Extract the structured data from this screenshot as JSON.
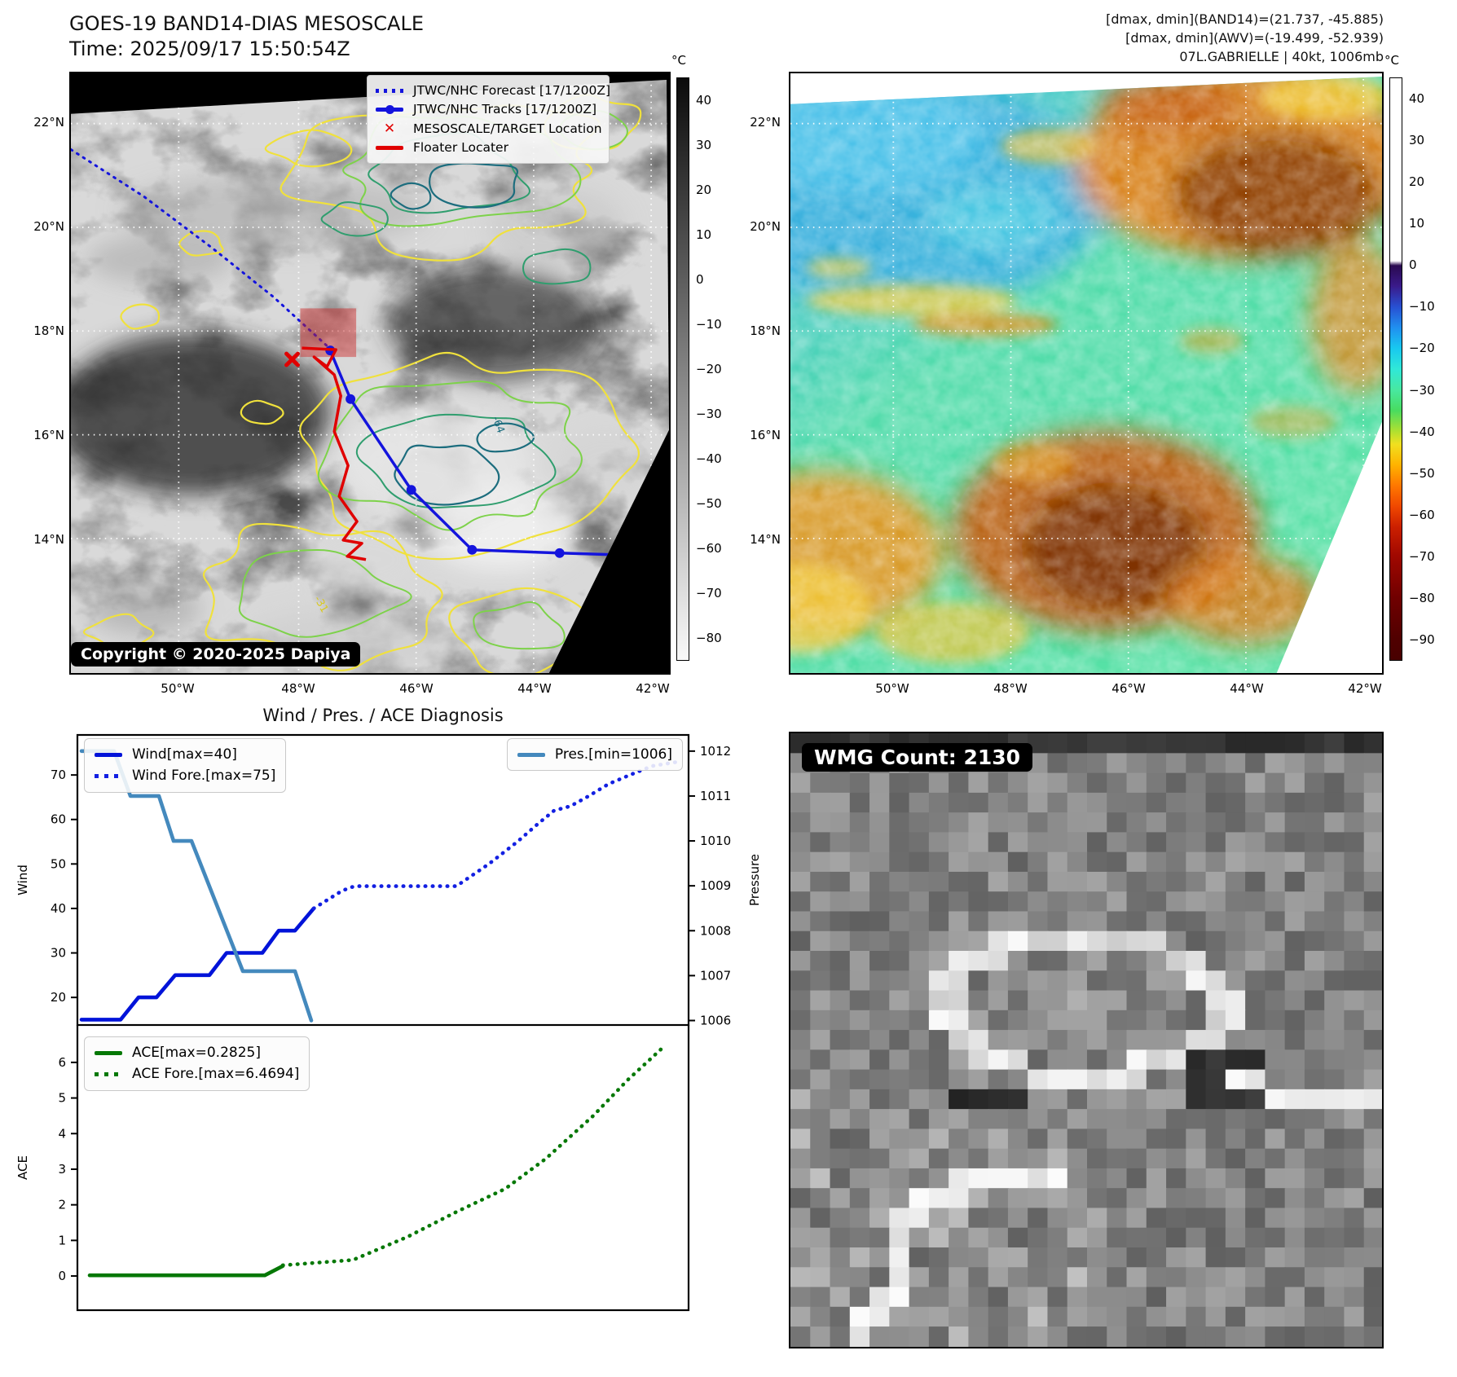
{
  "panel_band14": {
    "title_line1": "GOES-19 BAND14-DIAS MESOSCALE",
    "title_line2": "Time: 2025/09/17 15:50:54Z",
    "copyright": "Copyright © 2020-2025 Dapiya",
    "legend": [
      {
        "label": "JTWC/NHC Forecast [17/1200Z]",
        "style": "dotted",
        "color": "#1414dd"
      },
      {
        "label": "JTWC/NHC Tracks [17/1200Z]",
        "style": "marker",
        "color": "#1414dd"
      },
      {
        "label": "MESOSCALE/TARGET Location",
        "style": "xmark",
        "color": "#e00000"
      },
      {
        "label": "Floater Locater",
        "style": "solid",
        "color": "#e00000"
      }
    ],
    "colorbar": {
      "unit": "°C",
      "ticks": [
        40,
        30,
        20,
        10,
        0,
        -10,
        -20,
        -30,
        -40,
        -50,
        -60,
        -70,
        -80
      ]
    },
    "lat_ticks": [
      "22°N",
      "20°N",
      "18°N",
      "16°N",
      "14°N"
    ],
    "lon_ticks": [
      "50°W",
      "48°W",
      "46°W",
      "44°W",
      "42°W"
    ],
    "contour_labels": [
      "-31",
      "-64"
    ]
  },
  "panel_awv": {
    "header_line1": "[dmax, dmin](BAND14)=(21.737, -45.885)",
    "header_line2": "[dmax, dmin](AWV)=(-19.499, -52.939)",
    "header_line3": "07L.GABRIELLE | 40kt, 1006mb",
    "colorbar": {
      "unit": "°C",
      "ticks": [
        40,
        30,
        20,
        10,
        0,
        -10,
        -20,
        -30,
        -40,
        -50,
        -60,
        -70,
        -80,
        -90
      ]
    },
    "lat_ticks": [
      "22°N",
      "20°N",
      "18°N",
      "16°N",
      "14°N"
    ],
    "lon_ticks": [
      "50°W",
      "48°W",
      "46°W",
      "44°W",
      "42°W"
    ]
  },
  "panel_diagnosis": {
    "title": "Wind / Pres. / ACE Diagnosis"
  },
  "panel_wmg": {
    "count_label": "WMG Count: 2130"
  },
  "chart_data": [
    {
      "type": "line",
      "title": "Wind / Pres. / ACE Diagnosis",
      "subplot": "wind_pressure",
      "ylabel_left": "Wind",
      "ylabel_right": "Pressure",
      "ylim_left": [
        13.8,
        79.0
      ],
      "yticks_left": [
        20,
        30,
        40,
        50,
        60,
        70
      ],
      "ylim_right": [
        1005.9,
        1012.36
      ],
      "yticks_right": [
        1006,
        1007,
        1008,
        1009,
        1010,
        1011,
        1012
      ],
      "xlim": [
        0,
        750
      ],
      "grid": false,
      "legend_position": [
        "upper left",
        "upper right"
      ],
      "series": [
        {
          "name": "Wind[max=40]",
          "axis": "left",
          "line": "solid",
          "color": "#0013d9",
          "points": [
            [
              5,
              15
            ],
            [
              53,
              15
            ],
            [
              75,
              20
            ],
            [
              97,
              20
            ],
            [
              120,
              25
            ],
            [
              162,
              25
            ],
            [
              183,
              30
            ],
            [
              227,
              30
            ],
            [
              247,
              35
            ],
            [
              267,
              35
            ],
            [
              290,
              40
            ]
          ]
        },
        {
          "name": "Wind Fore.[max=75]",
          "axis": "left",
          "line": "dotted",
          "color": "#1320e2",
          "points": [
            [
              290,
              40
            ],
            [
              325,
              44
            ],
            [
              340,
              45
            ],
            [
              465,
              45
            ],
            [
              505,
              50
            ],
            [
              540,
              55
            ],
            [
              565,
              59
            ],
            [
              585,
              62
            ],
            [
              605,
              63
            ],
            [
              625,
              65
            ],
            [
              652,
              68
            ],
            [
              678,
              70
            ],
            [
              705,
              72
            ],
            [
              738,
              73
            ]
          ]
        },
        {
          "name": "Pres.[min=1006]",
          "axis": "right",
          "line": "solid",
          "color": "#4489bd",
          "points": [
            [
              5,
              1012
            ],
            [
              45,
              1012
            ],
            [
              65,
              1011
            ],
            [
              100,
              1011
            ],
            [
              118,
              1010
            ],
            [
              140,
              1010
            ],
            [
              203,
              1007.1
            ],
            [
              267,
              1007.1
            ],
            [
              287,
              1006
            ]
          ]
        }
      ]
    },
    {
      "type": "line",
      "subplot": "ace",
      "ylabel_left": "ACE",
      "ylim_left": [
        -0.96,
        7.05
      ],
      "yticks_left": [
        0,
        1,
        2,
        3,
        4,
        5,
        6
      ],
      "xlim": [
        0,
        750
      ],
      "grid": false,
      "legend_position": [
        "upper left"
      ],
      "series": [
        {
          "name": "ACE[max=0.2825]",
          "axis": "left",
          "line": "solid",
          "color": "#067806",
          "points": [
            [
              15,
              0.02
            ],
            [
              230,
              0.02
            ],
            [
              252,
              0.28
            ]
          ]
        },
        {
          "name": "ACE Fore.[max=6.4694]",
          "axis": "left",
          "line": "dotted",
          "color": "#067806",
          "points": [
            [
              252,
              0.3
            ],
            [
              338,
              0.45
            ],
            [
              405,
              1.1
            ],
            [
              465,
              1.8
            ],
            [
              525,
              2.45
            ],
            [
              575,
              3.3
            ],
            [
              633,
              4.5
            ],
            [
              675,
              5.5
            ],
            [
              721,
              6.47
            ]
          ]
        }
      ]
    }
  ]
}
